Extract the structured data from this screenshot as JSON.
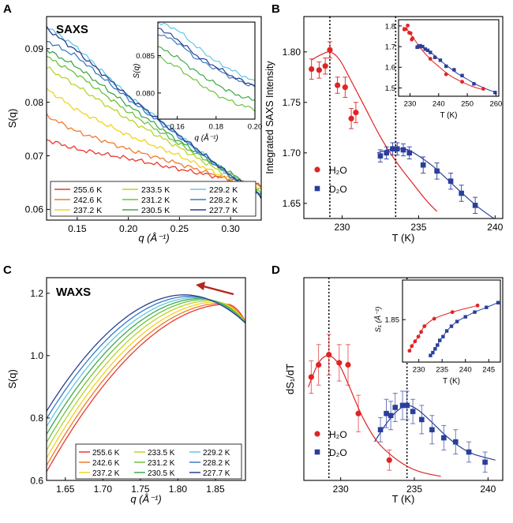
{
  "figure": {
    "description_panels": [
      "A",
      "B",
      "C",
      "D"
    ]
  },
  "temperatures": [
    "255.6 K",
    "242.6 K",
    "237.2 K",
    "233.5 K",
    "231.2 K",
    "230.5 K",
    "229.2 K",
    "228.2 K",
    "227.7 K"
  ],
  "palette": [
    "#e8392f",
    "#f07a2a",
    "#f2d21e",
    "#b8d42a",
    "#6cc23c",
    "#3fa84a",
    "#63c7e6",
    "#3a7cc0",
    "#2a3f8f"
  ],
  "colors": {
    "h2o": "#e02424",
    "d2o": "#2a3f9a",
    "arrow": "#b3261e"
  },
  "chart_data": [
    {
      "panel": "A",
      "type": "line",
      "title": "SAXS",
      "xlabel": "q (Å⁻¹)",
      "ylabel": "S(q)",
      "xlim": [
        0.12,
        0.33
      ],
      "ylim": [
        0.058,
        0.096
      ],
      "xticks": [
        0.15,
        0.2,
        0.25,
        0.3
      ],
      "xtick_labels": [
        "0.15",
        "0.20",
        "0.25",
        "0.30"
      ],
      "yticks": [
        0.06,
        0.07,
        0.08,
        0.09
      ],
      "ytick_labels": [
        "0.06",
        "0.07",
        "0.08",
        "0.09"
      ],
      "x": [
        0.12,
        0.15,
        0.2,
        0.25,
        0.3,
        0.33
      ],
      "series": [
        {
          "name": "255.6 K",
          "values": [
            0.073,
            0.0712,
            0.0695,
            0.0675,
            0.0656,
            0.0645
          ]
        },
        {
          "name": "242.6 K",
          "values": [
            0.0775,
            0.0745,
            0.0712,
            0.0685,
            0.0655,
            0.0643
          ]
        },
        {
          "name": "237.2 K",
          "values": [
            0.0825,
            0.0785,
            0.0738,
            0.07,
            0.0655,
            0.0638
          ]
        },
        {
          "name": "233.5 K",
          "values": [
            0.0865,
            0.083,
            0.0768,
            0.0715,
            0.066,
            0.0635
          ]
        },
        {
          "name": "231.2 K",
          "values": [
            0.0885,
            0.0852,
            0.0782,
            0.0722,
            0.0665,
            0.0632
          ]
        },
        {
          "name": "230.5 K",
          "values": [
            0.0898,
            0.0866,
            0.0794,
            0.0727,
            0.0668,
            0.063
          ]
        },
        {
          "name": "229.2 K",
          "values": [
            0.0942,
            0.0902,
            0.0812,
            0.0738,
            0.0662,
            0.0627
          ]
        },
        {
          "name": "228.2 K",
          "values": [
            0.0915,
            0.0885,
            0.0806,
            0.0735,
            0.0662,
            0.0625
          ]
        },
        {
          "name": "227.7 K",
          "values": [
            0.0938,
            0.0895,
            0.0811,
            0.0738,
            0.0664,
            0.0623
          ]
        }
      ],
      "inset": {
        "xlabel": "q (Å⁻¹)",
        "ylabel": "S(q)",
        "xlim": [
          0.15,
          0.2
        ],
        "ylim": [
          0.0765,
          0.0895
        ],
        "xticks": [
          0.16,
          0.18,
          0.2
        ],
        "xtick_labels": [
          "0.16",
          "0.18",
          "0.20"
        ],
        "yticks": [
          0.08,
          0.085
        ],
        "ytick_labels": [
          "0.080",
          "0.085"
        ],
        "x": [
          0.15,
          0.16,
          0.17,
          0.18,
          0.19,
          0.2
        ],
        "series": [
          {
            "name": "231.2 K",
            "values": [
              0.0848,
              0.0835,
              0.0815,
              0.0798,
              0.0786,
              0.0778
            ]
          },
          {
            "name": "230.5 K",
            "values": [
              0.0862,
              0.0848,
              0.0828,
              0.0812,
              0.0798,
              0.079
            ]
          },
          {
            "name": "229.2 K",
            "values": [
              0.0895,
              0.0885,
              0.0862,
              0.0842,
              0.0828,
              0.0815
            ]
          },
          {
            "name": "228.2 K",
            "values": [
              0.088,
              0.0868,
              0.0846,
              0.0832,
              0.0818,
              0.0808
            ]
          },
          {
            "name": "227.7 K",
            "values": [
              0.0888,
              0.0872,
              0.085,
              0.0835,
              0.082,
              0.081
            ]
          }
        ]
      }
    },
    {
      "panel": "B",
      "type": "scatter",
      "xlabel": "T (K)",
      "ylabel": "Integrated SAXS Intensity",
      "xlim": [
        227.5,
        240.5
      ],
      "ylim": [
        1.635,
        1.835
      ],
      "xticks": [
        230,
        235,
        240
      ],
      "xtick_labels": [
        "230",
        "235",
        "240"
      ],
      "yticks": [
        1.65,
        1.7,
        1.75,
        1.8
      ],
      "ytick_labels": [
        "1.65",
        "1.70",
        "1.75",
        "1.80"
      ],
      "vlines": [
        229.2,
        233.5
      ],
      "legend": [
        "H₂O",
        "D₂O"
      ],
      "h2o": {
        "x": [
          228.0,
          228.5,
          228.9,
          229.2,
          229.7,
          230.2,
          230.6,
          230.9
        ],
        "y": [
          1.783,
          1.782,
          1.786,
          1.802,
          1.767,
          1.765,
          1.734,
          1.74
        ],
        "err": [
          0.01,
          0.008,
          0.008,
          0.008,
          0.008,
          0.01,
          0.01,
          0.01
        ]
      },
      "h2o_fit": {
        "x": [
          228.0,
          228.6,
          229.2,
          229.8,
          230.5,
          231.5,
          232.5,
          233.5,
          234.5,
          235.5,
          236.2
        ],
        "y": [
          1.792,
          1.797,
          1.8,
          1.793,
          1.774,
          1.745,
          1.716,
          1.692,
          1.672,
          1.653,
          1.642
        ]
      },
      "d2o": {
        "x": [
          232.5,
          232.9,
          233.3,
          233.6,
          234.0,
          234.4,
          235.3,
          236.2,
          237.1,
          237.8,
          238.7
        ],
        "y": [
          1.697,
          1.7,
          1.704,
          1.704,
          1.703,
          1.7,
          1.688,
          1.682,
          1.672,
          1.66,
          1.648
        ],
        "err": [
          0.006,
          0.006,
          0.006,
          0.006,
          0.006,
          0.006,
          0.008,
          0.008,
          0.008,
          0.008,
          0.008
        ]
      },
      "d2o_fit": {
        "x": [
          232.3,
          233.0,
          233.6,
          234.3,
          235.0,
          236.0,
          237.0,
          238.0,
          239.0,
          240.2
        ],
        "y": [
          1.7,
          1.703,
          1.704,
          1.703,
          1.697,
          1.686,
          1.672,
          1.658,
          1.645,
          1.632
        ]
      },
      "inset": {
        "xlabel": "T (K)",
        "xlim": [
          226,
          261
        ],
        "ylim": [
          1.46,
          1.83
        ],
        "xticks": [
          230,
          240,
          250,
          260
        ],
        "xtick_labels": [
          "230",
          "240",
          "250",
          "260"
        ],
        "yticks": [
          1.5,
          1.6,
          1.7,
          1.8
        ],
        "ytick_labels": [
          "1.5",
          "1.6",
          "1.7",
          "1.8"
        ],
        "h2o": {
          "x": [
            228.0,
            228.5,
            229.2,
            229.7,
            230.2,
            230.6,
            230.9,
            233.3,
            237.1,
            242.6,
            248.2,
            255.6
          ],
          "y": [
            1.783,
            1.785,
            1.802,
            1.767,
            1.765,
            1.734,
            1.74,
            1.699,
            1.641,
            1.566,
            1.53,
            1.496
          ]
        },
        "d2o": {
          "x": [
            232.5,
            233.0,
            233.6,
            234.4,
            235.3,
            236.2,
            237.1,
            238.7,
            240.6,
            242.6,
            245.4,
            248.2,
            252.3,
            259.7
          ],
          "y": [
            1.697,
            1.702,
            1.704,
            1.7,
            1.688,
            1.682,
            1.672,
            1.648,
            1.634,
            1.605,
            1.588,
            1.56,
            1.52,
            1.478
          ]
        },
        "h2o_fit": {
          "x": [
            227.5,
            229,
            231,
            234,
            237,
            240,
            244,
            248,
            252,
            256
          ],
          "y": [
            1.795,
            1.782,
            1.745,
            1.687,
            1.641,
            1.604,
            1.56,
            1.53,
            1.506,
            1.49
          ]
        },
        "d2o_fit": {
          "x": [
            232,
            234,
            236,
            238,
            241,
            244,
            247,
            250,
            254,
            258,
            260
          ],
          "y": [
            1.703,
            1.7,
            1.684,
            1.664,
            1.628,
            1.596,
            1.566,
            1.542,
            1.511,
            1.488,
            1.48
          ]
        }
      }
    },
    {
      "panel": "C",
      "type": "line",
      "title": "WAXS",
      "xlabel": "q (Å⁻¹)",
      "ylabel": "S(q)",
      "xlim": [
        1.625,
        1.89
      ],
      "ylim": [
        0.6,
        1.25
      ],
      "xticks": [
        1.65,
        1.7,
        1.75,
        1.8,
        1.85
      ],
      "xtick_labels": [
        "1.65",
        "1.70",
        "1.75",
        "1.80",
        "1.85"
      ],
      "yticks": [
        0.6,
        0.8,
        1.0,
        1.2
      ],
      "ytick_labels": [
        "0.6",
        "0.8",
        "1.0",
        "1.2"
      ],
      "peak_q": [
        1.865,
        1.858,
        1.851,
        1.843,
        1.836,
        1.829,
        1.822,
        1.815,
        1.808
      ],
      "peak_s": [
        1.165,
        1.168,
        1.172,
        1.176,
        1.18,
        1.183,
        1.186,
        1.19,
        1.195
      ],
      "start_s": [
        0.628,
        0.648,
        0.672,
        0.697,
        0.722,
        0.748,
        0.773,
        0.798,
        0.822
      ]
    },
    {
      "panel": "D",
      "type": "scatter",
      "xlabel": "T (K)",
      "ylabel": "dS₁/dT",
      "xlim": [
        227.5,
        241.0
      ],
      "ylim": [
        0,
        1
      ],
      "xticks": [
        230,
        235,
        240
      ],
      "xtick_labels": [
        "230",
        "235",
        "240"
      ],
      "vlines": [
        229.2,
        234.5
      ],
      "legend": [
        "H₂O",
        "D₂O"
      ],
      "h2o": {
        "x": [
          228.0,
          228.5,
          229.2,
          229.9,
          230.5,
          231.2,
          233.3
        ],
        "y": [
          0.51,
          0.57,
          0.62,
          0.58,
          0.57,
          0.33,
          0.1
        ],
        "err": [
          0.08,
          0.1,
          0.1,
          0.09,
          0.1,
          0.09,
          0.05
        ]
      },
      "h2o_fit": {
        "x": [
          227.8,
          228.5,
          229.2,
          229.9,
          230.6,
          231.5,
          232.5,
          233.5,
          234.5,
          235.5,
          236.8
        ],
        "y": [
          0.46,
          0.58,
          0.615,
          0.57,
          0.46,
          0.31,
          0.19,
          0.12,
          0.07,
          0.04,
          0.02
        ]
      },
      "d2o": {
        "x": [
          232.7,
          233.1,
          233.4,
          233.7,
          234.2,
          234.5,
          234.9,
          235.5,
          236.2,
          237.0,
          237.8,
          238.7,
          239.8
        ],
        "y": [
          0.25,
          0.33,
          0.32,
          0.36,
          0.37,
          0.37,
          0.34,
          0.3,
          0.25,
          0.21,
          0.19,
          0.14,
          0.09
        ],
        "err": [
          0.06,
          0.07,
          0.07,
          0.07,
          0.07,
          0.07,
          0.06,
          0.07,
          0.07,
          0.06,
          0.06,
          0.05,
          0.05
        ]
      },
      "d2o_fit": {
        "x": [
          232.3,
          233.0,
          233.8,
          234.5,
          235.2,
          236.0,
          237.0,
          238.0,
          239.0,
          240.5
        ],
        "y": [
          0.19,
          0.27,
          0.34,
          0.37,
          0.35,
          0.3,
          0.23,
          0.17,
          0.13,
          0.1
        ]
      },
      "inset": {
        "xlabel": "T (K)",
        "ylabel": "S₁ (Å⁻¹)",
        "xlim": [
          226.5,
          247.5
        ],
        "ylim": [
          1.805,
          1.892
        ],
        "xticks": [
          230,
          235,
          240,
          245
        ],
        "xtick_labels": [
          "230",
          "235",
          "240",
          "245"
        ],
        "yticks": [
          1.85
        ],
        "ytick_labels": [
          "1.85"
        ],
        "h2o": {
          "x": [
            228.0,
            228.5,
            229.2,
            229.9,
            230.5,
            231.2,
            233.3,
            237.2,
            242.6
          ],
          "y": [
            1.817,
            1.822,
            1.827,
            1.832,
            1.837,
            1.843,
            1.851,
            1.858,
            1.865
          ]
        },
        "d2o": {
          "x": [
            232.5,
            233.0,
            233.5,
            234.0,
            234.5,
            235.2,
            236.0,
            237.0,
            238.2,
            240.0,
            242.0,
            244.5,
            247.0
          ],
          "y": [
            1.812,
            1.815,
            1.819,
            1.823,
            1.828,
            1.832,
            1.838,
            1.843,
            1.848,
            1.853,
            1.858,
            1.863,
            1.868
          ]
        }
      }
    }
  ],
  "labels": {
    "panel_a": "A",
    "panel_b": "B",
    "panel_c": "C",
    "panel_d": "D",
    "saxs": "SAXS",
    "waxs": "WAXS",
    "h2o": "H₂O",
    "d2o": "D₂O"
  }
}
